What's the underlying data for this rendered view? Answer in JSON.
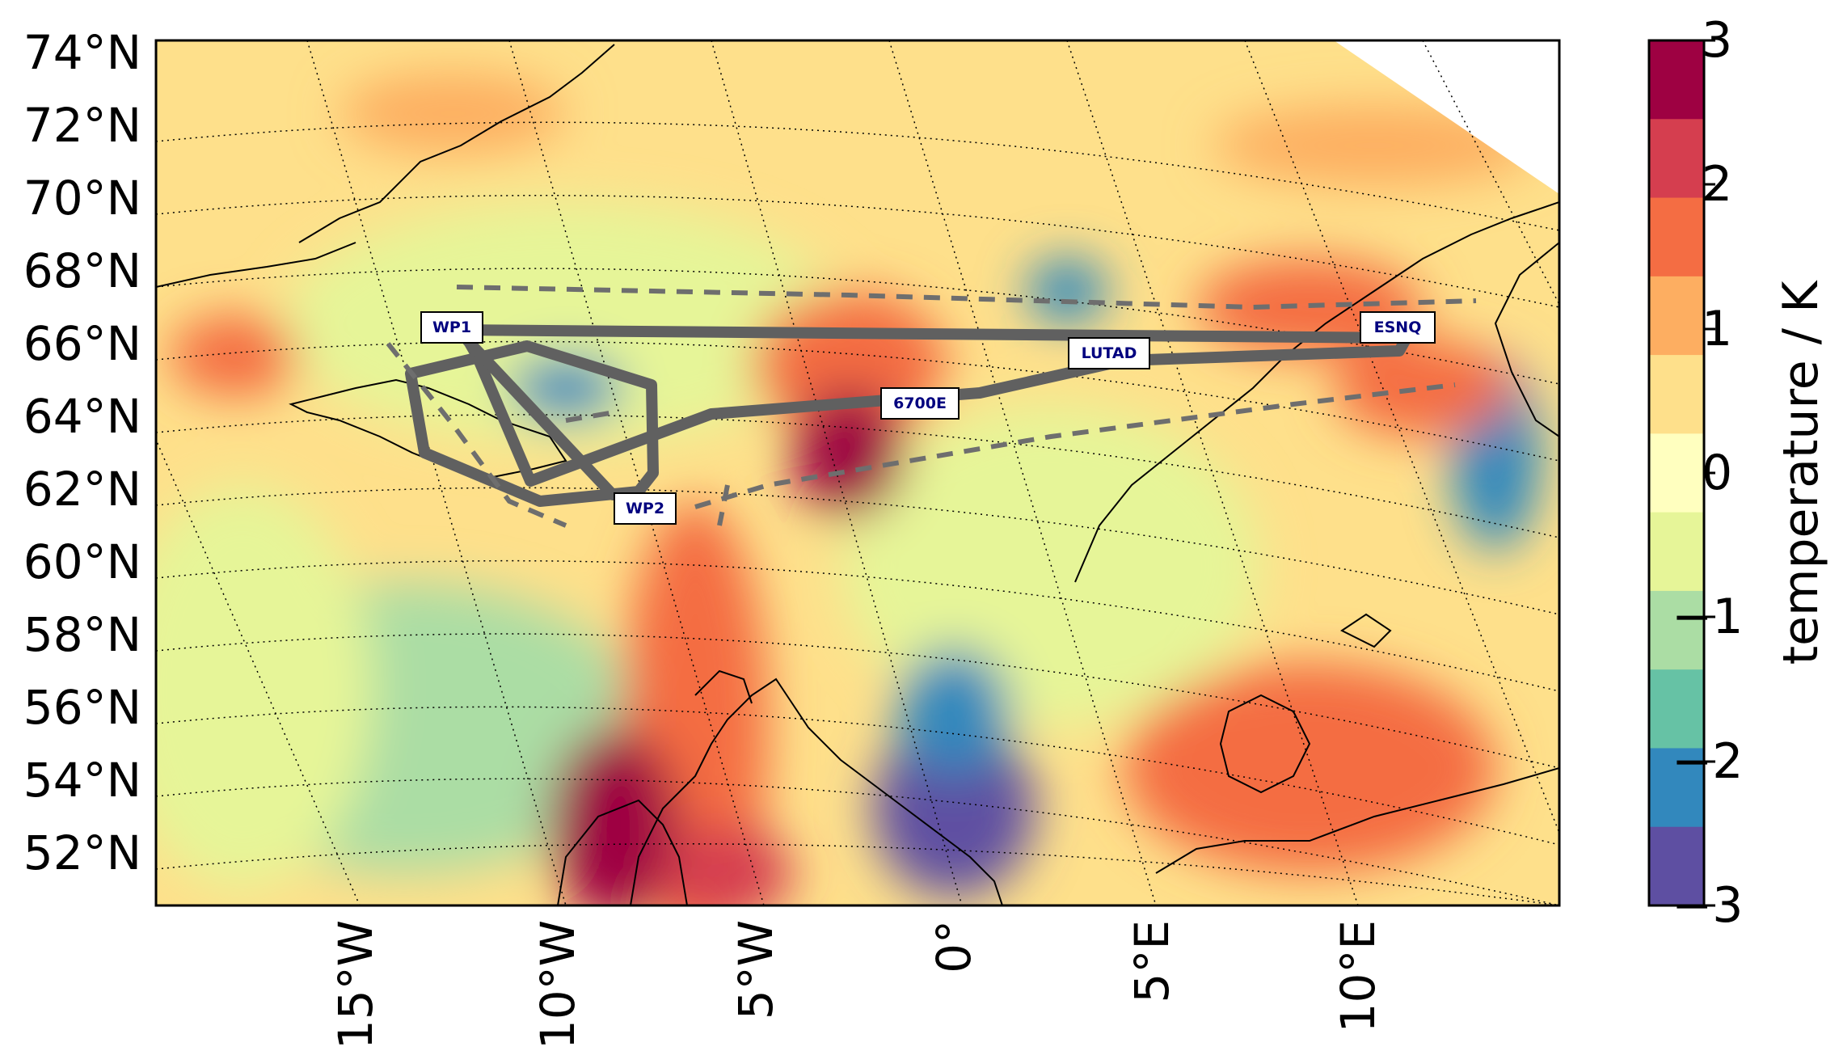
{
  "map": {
    "projection": "stereographic",
    "lat_labels": [
      "74°N",
      "72°N",
      "70°N",
      "68°N",
      "66°N",
      "64°N",
      "62°N",
      "60°N",
      "58°N",
      "56°N",
      "54°N",
      "52°N"
    ],
    "lon_labels": [
      "15°W",
      "10°W",
      "5°W",
      "0°",
      "5°E",
      "10°E"
    ],
    "grid_style": "dotted",
    "coastlines": true
  },
  "colorbar": {
    "label": "temperature / K",
    "range": [
      -3,
      3
    ],
    "ticks": [
      "3",
      "2",
      "1",
      "0",
      "−1",
      "−2",
      "−3"
    ],
    "colors": [
      "#9e0142",
      "#d53e4f",
      "#f46d43",
      "#fdae61",
      "#fee08b",
      "#ffffbf",
      "#e6f598",
      "#abdda4",
      "#66c2a5",
      "#3288bd",
      "#5e4fa2"
    ],
    "colormap": "Spectral_r"
  },
  "flight_track": {
    "color": "#606060",
    "waypoints": [
      {
        "label": "WP1"
      },
      {
        "label": "WP2"
      },
      {
        "label": "6700E"
      },
      {
        "label": "LUTAD"
      },
      {
        "label": "ESNQ"
      }
    ]
  }
}
